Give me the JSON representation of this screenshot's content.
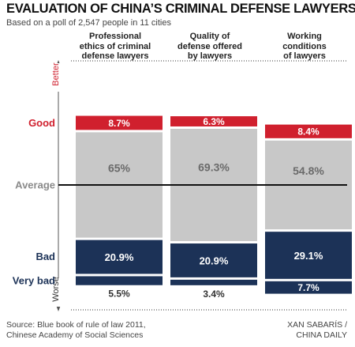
{
  "title": "EVALUATION OF CHINA’S CRIMINAL DEFENSE LAWYERS",
  "subtitle": "Based on a poll of 2,547 people in 11 cities",
  "columns": [
    {
      "lines": [
        "Professional",
        "ethics of criminal",
        "defense lawyers"
      ]
    },
    {
      "lines": [
        "Quality of",
        "defense offered",
        "by lawyers"
      ]
    },
    {
      "lines": [
        "Working",
        "conditions",
        "of lawyers"
      ]
    }
  ],
  "axis": {
    "top": "Better",
    "bottom": "Worse"
  },
  "row_labels": {
    "good": "Good",
    "average": "Average",
    "bad": "Bad",
    "very_bad": "Very bad"
  },
  "source_lines": [
    "Source: Blue book of rule of law 2011,",
    "Chinese Academy of Social Sciences"
  ],
  "credit_lines": [
    "XAN SABARÍS /",
    "CHINA DAILY"
  ],
  "colors": {
    "good": "#d0202e",
    "average": "#c8c8c8",
    "bad": "#1c3257",
    "axis_text": "#d0202e",
    "label": "#1c3257"
  },
  "chart_data": {
    "type": "bar",
    "stacked": "diverging",
    "categories": [
      "Professional ethics of criminal defense lawyers",
      "Quality of defense offered by lawyers",
      "Working conditions of lawyers"
    ],
    "series": [
      {
        "name": "Good",
        "values": [
          8.7,
          6.3,
          8.4
        ],
        "labels": [
          "8.7%",
          "6.3%",
          "8.4%"
        ]
      },
      {
        "name": "Average",
        "values": [
          65,
          69.3,
          54.8
        ],
        "labels": [
          "65%",
          "69.3%",
          "54.8%"
        ]
      },
      {
        "name": "Bad",
        "values": [
          20.9,
          20.9,
          29.1
        ],
        "labels": [
          "20.9%",
          "20.9%",
          "29.1%"
        ]
      },
      {
        "name": "Very bad",
        "values": [
          5.5,
          3.4,
          7.7
        ],
        "labels": [
          "5.5%",
          "3.4%",
          "7.7%"
        ]
      }
    ]
  }
}
